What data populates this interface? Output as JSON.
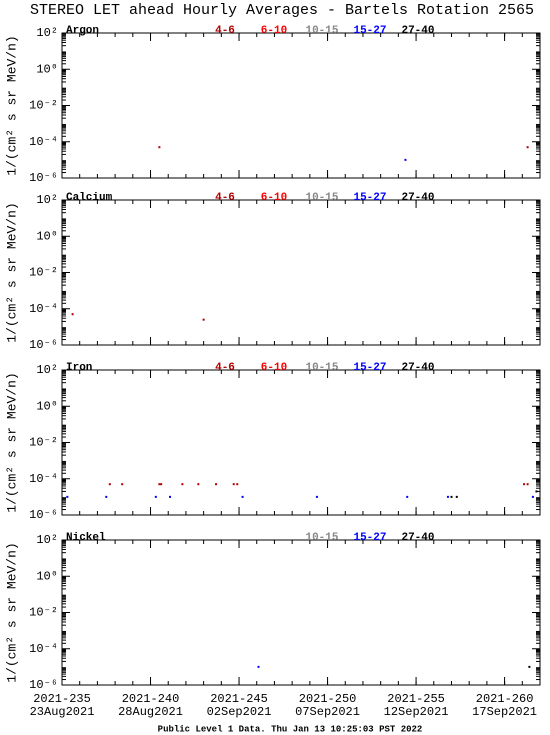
{
  "title": "STEREO LET ahead Hourly Averages - Bartels Rotation 2565",
  "footer": "Public Level 1 Data. Thu Jan 13 10:25:03 PST 2022",
  "x_axis": {
    "xlim": [
      235,
      262
    ],
    "xticks": [
      {
        "value": 235,
        "label": "2021-235"
      },
      {
        "value": 240,
        "label": "2021-240"
      },
      {
        "value": 245,
        "label": "2021-245"
      },
      {
        "value": 250,
        "label": "2021-250"
      },
      {
        "value": 255,
        "label": "2021-255"
      },
      {
        "value": 260,
        "label": "2021-260"
      }
    ],
    "dates": [
      "23Aug2021",
      "28Aug2021",
      "02Sep2021",
      "07Sep2021",
      "12Sep2021",
      "17Sep2021"
    ]
  },
  "chart_data": [
    {
      "type": "scatter",
      "label": "Argon",
      "ylabel": "1/(cm² s sr MeV/n)",
      "log_y": true,
      "ylim": [
        1e-06,
        100
      ],
      "yticks": [
        {
          "value": 100,
          "label": "10²"
        },
        {
          "value": 1,
          "label": "10⁰"
        },
        {
          "value": 0.01,
          "label": "10⁻²"
        },
        {
          "value": 0.0001,
          "label": "10⁻⁴"
        },
        {
          "value": 1e-06,
          "label": "10⁻⁶"
        }
      ],
      "series": [
        {
          "name": "4-6",
          "color": "#b00000",
          "x": [
            240.5,
            261.3
          ],
          "values": [
            5e-05,
            5e-05
          ]
        },
        {
          "name": "6-10",
          "color": "#ff0000",
          "x": [],
          "values": []
        },
        {
          "name": "10-15",
          "color": "#888888",
          "x": [],
          "values": []
        },
        {
          "name": "15-27",
          "color": "#0000ff",
          "x": [
            254.4
          ],
          "values": [
            1e-05
          ]
        },
        {
          "name": "27-40",
          "color": "#000000",
          "x": [],
          "values": []
        }
      ]
    },
    {
      "type": "scatter",
      "label": "Calcium",
      "ylabel": "1/(cm² s sr MeV/n)",
      "log_y": true,
      "ylim": [
        1e-06,
        100
      ],
      "yticks": [
        {
          "value": 100,
          "label": "10²"
        },
        {
          "value": 1,
          "label": "10⁰"
        },
        {
          "value": 0.01,
          "label": "10⁻²"
        },
        {
          "value": 0.0001,
          "label": "10⁻⁴"
        },
        {
          "value": 1e-06,
          "label": "10⁻⁶"
        }
      ],
      "series": [
        {
          "name": "4-6",
          "color": "#b00000",
          "x": [
            235.6,
            243
          ],
          "values": [
            5e-05,
            2.5e-05
          ]
        },
        {
          "name": "6-10",
          "color": "#ff0000",
          "x": [],
          "values": []
        },
        {
          "name": "10-15",
          "color": "#888888",
          "x": [],
          "values": []
        },
        {
          "name": "15-27",
          "color": "#0000ff",
          "x": [],
          "values": []
        },
        {
          "name": "27-40",
          "color": "#000000",
          "x": [],
          "values": []
        }
      ]
    },
    {
      "type": "scatter",
      "label": "Iron",
      "ylabel": "1/(cm² s sr MeV/n)",
      "log_y": true,
      "ylim": [
        1e-06,
        100
      ],
      "yticks": [
        {
          "value": 100,
          "label": "10²"
        },
        {
          "value": 1,
          "label": "10⁰"
        },
        {
          "value": 0.01,
          "label": "10⁻²"
        },
        {
          "value": 0.0001,
          "label": "10⁻⁴"
        },
        {
          "value": 1e-06,
          "label": "10⁻⁶"
        }
      ],
      "series": [
        {
          "name": "4-6",
          "color": "#b00000",
          "x": [
            237.7,
            238.4,
            240.5,
            240.6,
            241.8,
            242.7,
            243.7,
            244.7,
            244.9,
            261.1,
            261.3
          ],
          "values": [
            5e-05,
            5e-05,
            5e-05,
            5e-05,
            5e-05,
            5e-05,
            5e-05,
            5e-05,
            5e-05,
            5e-05,
            5e-05
          ]
        },
        {
          "name": "6-10",
          "color": "#ff0000",
          "x": [],
          "values": []
        },
        {
          "name": "10-15",
          "color": "#888888",
          "x": [],
          "values": []
        },
        {
          "name": "15-27",
          "color": "#0000ff",
          "x": [
            235.3,
            237.5,
            240.3,
            241.1,
            245.2,
            249.4,
            254.5,
            256.8,
            261.6
          ],
          "values": [
            1e-05,
            1e-05,
            1e-05,
            1e-05,
            1e-05,
            1e-05,
            1e-05,
            1e-05,
            1e-05
          ]
        },
        {
          "name": "27-40",
          "color": "#000000",
          "x": [
            257,
            257.3,
            261.8
          ],
          "values": [
            1e-05,
            1e-05,
            2e-05
          ]
        }
      ]
    },
    {
      "type": "scatter",
      "label": "Nickel",
      "ylabel": "1/(cm² s sr MeV/n)",
      "log_y": true,
      "ylim": [
        1e-06,
        100
      ],
      "yticks": [
        {
          "value": 100,
          "label": "10²"
        },
        {
          "value": 1,
          "label": "10⁰"
        },
        {
          "value": 0.01,
          "label": "10⁻²"
        },
        {
          "value": 0.0001,
          "label": "10⁻⁴"
        },
        {
          "value": 1e-06,
          "label": "10⁻⁶"
        }
      ],
      "series": [
        {
          "name": "10-15",
          "color": "#888888",
          "x": [],
          "values": []
        },
        {
          "name": "15-27",
          "color": "#0000ff",
          "x": [
            246.1
          ],
          "values": [
            1e-05
          ]
        },
        {
          "name": "27-40",
          "color": "#000000",
          "x": [
            261.4
          ],
          "values": [
            1e-05
          ]
        }
      ]
    }
  ]
}
